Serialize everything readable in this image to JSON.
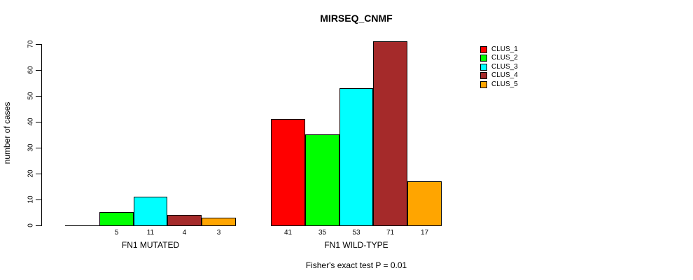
{
  "title": "MIRSEQ_CNMF",
  "caption": "Fisher's exact test P = 0.01",
  "y_axis": {
    "label": "number of cases",
    "ticks": [
      0,
      10,
      20,
      30,
      40,
      50,
      60,
      70
    ]
  },
  "chart_data": {
    "type": "bar",
    "title": "MIRSEQ_CNMF",
    "xlabel": "",
    "ylabel": "number of cases",
    "ylim": [
      0,
      70
    ],
    "grid": false,
    "legend_position": "right",
    "categories": [
      "FN1 MUTATED",
      "FN1 WILD-TYPE"
    ],
    "series": [
      {
        "name": "CLUS_1",
        "color": "#FF0000",
        "values": [
          0,
          41
        ]
      },
      {
        "name": "CLUS_2",
        "color": "#00FF00",
        "values": [
          5,
          35
        ]
      },
      {
        "name": "CLUS_3",
        "color": "#00FFFF",
        "values": [
          11,
          53
        ]
      },
      {
        "name": "CLUS_4",
        "color": "#A52A2A",
        "values": [
          4,
          71
        ]
      },
      {
        "name": "CLUS_5",
        "color": "#FFA500",
        "values": [
          3,
          17
        ]
      }
    ],
    "bar_value_labels_shown_only_when_positive": true,
    "annotation": "Fisher's exact test P = 0.01"
  }
}
